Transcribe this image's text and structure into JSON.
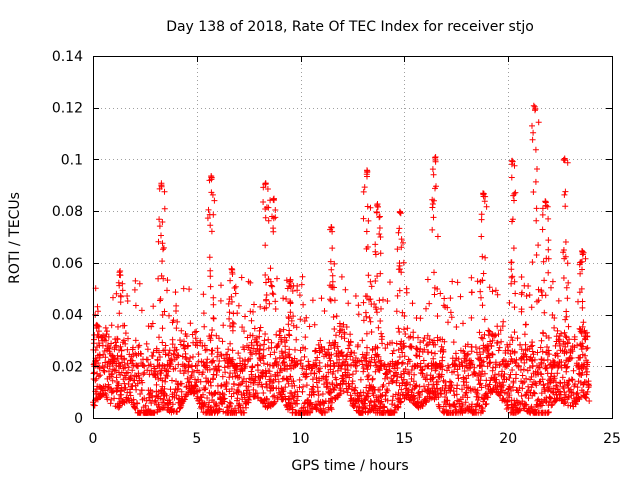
{
  "chart_data": {
    "type": "scatter",
    "title": "Day 138 of 2018, Rate Of TEC Index for receiver stjo",
    "xlabel": "GPS time / hours",
    "ylabel": "ROTI / TECUs",
    "xlim": [
      0,
      25
    ],
    "ylim": [
      0,
      0.14
    ],
    "xticks": [
      "0",
      "5",
      "10",
      "15",
      "20",
      "25"
    ],
    "yticks": [
      "0",
      "0.02",
      "0.04",
      "0.06",
      "0.08",
      "0.1",
      "0.12",
      "0.14"
    ],
    "grid": true,
    "marker": "+",
    "series": [
      {
        "name": "ROTI",
        "color": "#ff0000",
        "x_range": [
          0,
          23.9
        ],
        "typical_y_range": [
          0.003,
          0.03
        ],
        "peaks": [
          {
            "x": 0.2,
            "y": 0.036
          },
          {
            "x": 1.3,
            "y": 0.057
          },
          {
            "x": 3.3,
            "y": 0.091
          },
          {
            "x": 5.7,
            "y": 0.094
          },
          {
            "x": 6.7,
            "y": 0.058
          },
          {
            "x": 8.3,
            "y": 0.092
          },
          {
            "x": 8.7,
            "y": 0.085
          },
          {
            "x": 9.5,
            "y": 0.054
          },
          {
            "x": 11.5,
            "y": 0.074
          },
          {
            "x": 13.2,
            "y": 0.096
          },
          {
            "x": 13.7,
            "y": 0.083
          },
          {
            "x": 14.8,
            "y": 0.08
          },
          {
            "x": 16.5,
            "y": 0.101
          },
          {
            "x": 18.8,
            "y": 0.087
          },
          {
            "x": 20.2,
            "y": 0.1
          },
          {
            "x": 21.3,
            "y": 0.121
          },
          {
            "x": 21.8,
            "y": 0.084
          },
          {
            "x": 22.7,
            "y": 0.101
          },
          {
            "x": 23.6,
            "y": 0.065
          }
        ]
      }
    ]
  }
}
